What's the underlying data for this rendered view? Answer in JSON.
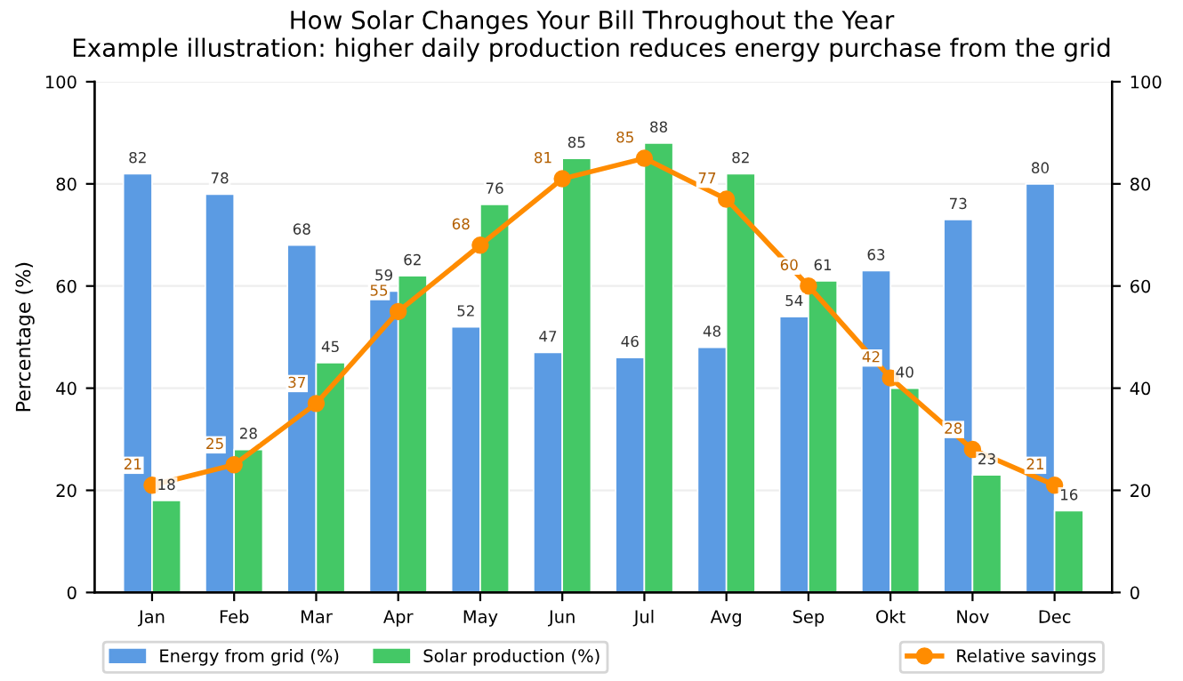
{
  "chart_data": {
    "type": "bar",
    "title": "How Solar Changes Your Bill Throughout the Year",
    "subtitle": "Example illustration: higher daily production reduces energy purchase from the grid",
    "ylabel": "Percentage (%)",
    "categories": [
      "Jan",
      "Feb",
      "Mar",
      "Apr",
      "May",
      "Jun",
      "Jul",
      "Avg",
      "Sep",
      "Okt",
      "Nov",
      "Dec"
    ],
    "series": [
      {
        "name": "Energy from grid (%)",
        "color": "#5b9be3",
        "values": [
          82,
          78,
          68,
          59,
          52,
          47,
          46,
          48,
          54,
          63,
          73,
          80
        ]
      },
      {
        "name": "Solar production (%)",
        "color": "#44c866",
        "values": [
          18,
          28,
          45,
          62,
          76,
          85,
          88,
          82,
          61,
          40,
          23,
          16
        ]
      },
      {
        "name": "Relative savings",
        "type": "line",
        "axis": "y2",
        "color": "#ff8c00",
        "marker": "circle",
        "values": [
          21,
          25,
          37,
          55,
          68,
          81,
          85,
          77,
          60,
          42,
          28,
          21
        ]
      }
    ],
    "ylim": [
      0,
      100
    ],
    "yticks": [
      0,
      20,
      40,
      60,
      80,
      100
    ],
    "y2lim": [
      0,
      100
    ],
    "y2ticks": [
      0,
      20,
      40,
      60,
      80,
      100
    ],
    "data_labels": true,
    "grid": "y",
    "legend": "bottom"
  }
}
